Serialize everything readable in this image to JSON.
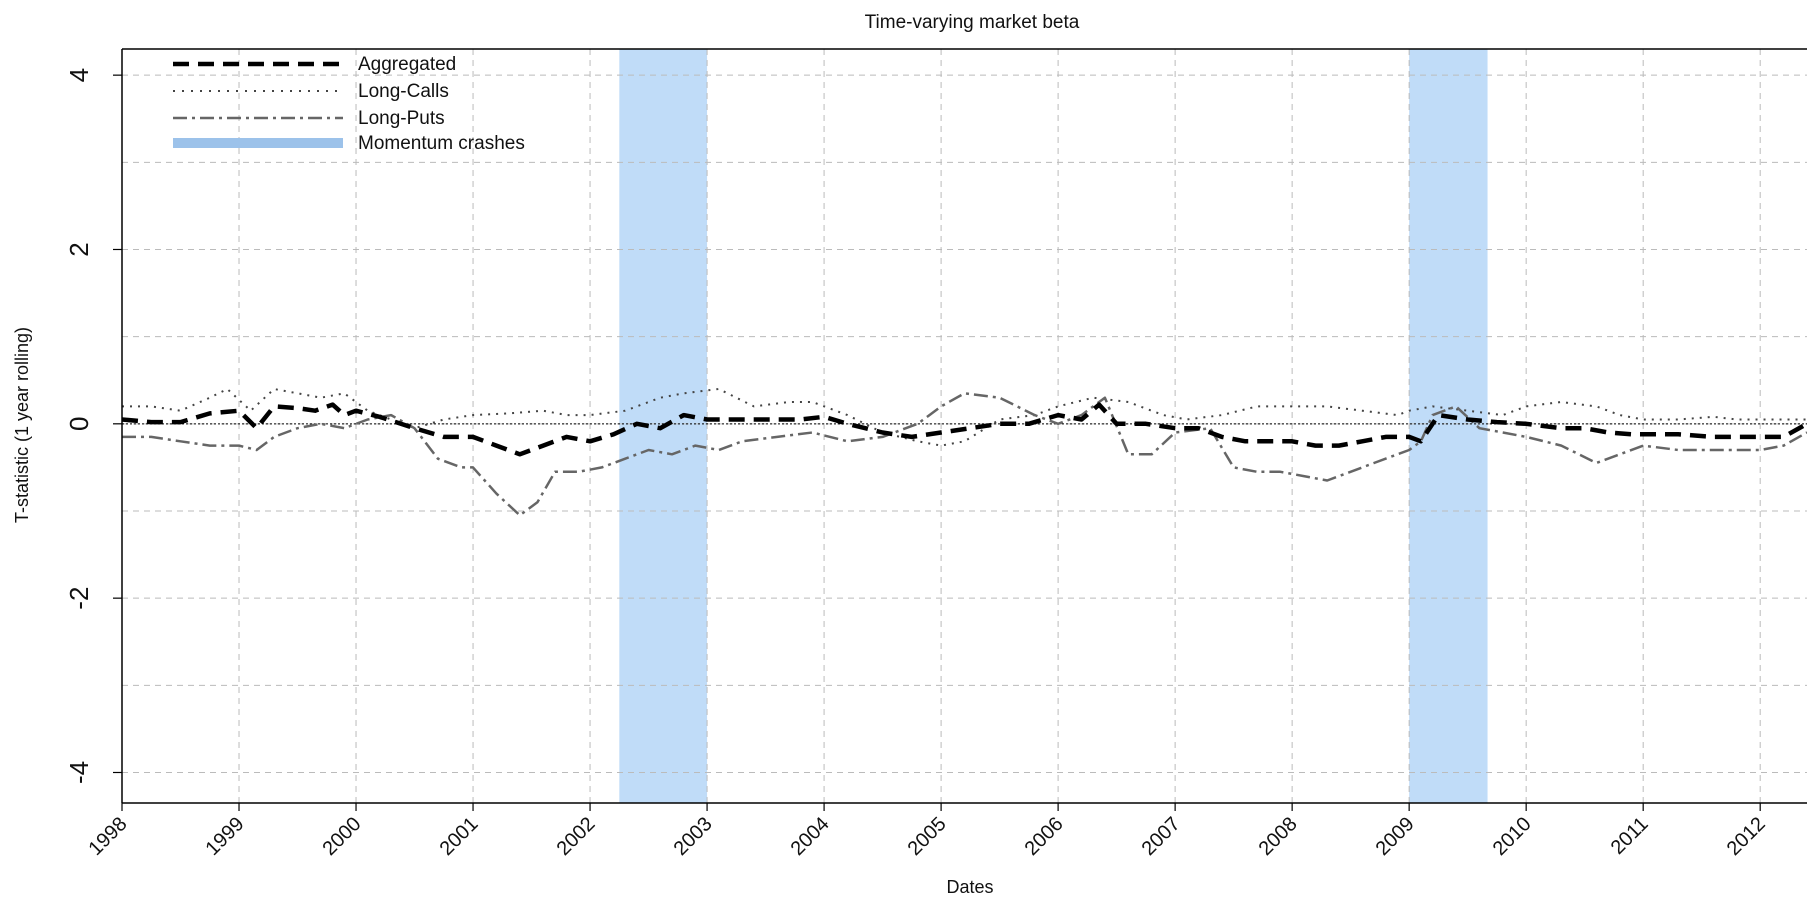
{
  "chart_data": {
    "type": "line",
    "title": "Time-varying market beta",
    "xlabel": "Dates",
    "ylabel": "T-statistic (1 year rolling)",
    "xlim": [
      1998.0,
      2012.4
    ],
    "ylim": [
      -4.35,
      4.3
    ],
    "x_ticks": [
      1998,
      1999,
      2000,
      2001,
      2002,
      2003,
      2004,
      2005,
      2006,
      2007,
      2008,
      2009,
      2010,
      2011,
      2012
    ],
    "x_tick_labels": [
      "1998",
      "1999",
      "2000",
      "2001",
      "2002",
      "2003",
      "2004",
      "2005",
      "2006",
      "2007",
      "2008",
      "2009",
      "2010",
      "2011",
      "2012"
    ],
    "y_ticks": [
      -4,
      -2,
      0,
      2,
      4
    ],
    "y_tick_labels": [
      "-4",
      "-2",
      "0",
      "2",
      "4"
    ],
    "y_grid": [
      -4,
      -3,
      -2,
      -1,
      0,
      1,
      2,
      3,
      4
    ],
    "grid": true,
    "legend_position": "top-left",
    "shaded_regions": [
      {
        "name": "Momentum crashes",
        "x0": 2002.25,
        "x1": 2003.0
      },
      {
        "name": "Momentum crashes",
        "x0": 2009.0,
        "x1": 2009.67
      }
    ],
    "legend": [
      {
        "label": "Aggregated",
        "style": "dashed-thick"
      },
      {
        "label": "Long-Calls",
        "style": "dotted"
      },
      {
        "label": "Long-Puts",
        "style": "dashdot"
      },
      {
        "label": "Momentum crashes",
        "style": "band"
      }
    ],
    "colors": {
      "aggregated": "#000000",
      "calls": "#444444",
      "puts": "#666666",
      "band": "#c0dcf8",
      "band_legend": "#9cc2ea",
      "grid": "#bbbbbb"
    },
    "series": [
      {
        "name": "Aggregated",
        "x": [
          1998.0,
          1998.25,
          1998.5,
          1998.75,
          1999.0,
          1999.15,
          1999.3,
          1999.5,
          1999.65,
          1999.8,
          1999.9,
          2000.0,
          2000.2,
          2000.5,
          2000.75,
          2001.0,
          2001.2,
          2001.4,
          2001.6,
          2001.8,
          2002.0,
          2002.2,
          2002.4,
          2002.6,
          2002.8,
          2003.0,
          2003.2,
          2003.4,
          2003.6,
          2003.8,
          2004.0,
          2004.2,
          2004.5,
          2004.75,
          2005.0,
          2005.25,
          2005.5,
          2005.75,
          2006.0,
          2006.2,
          2006.35,
          2006.5,
          2006.75,
          2007.0,
          2007.2,
          2007.4,
          2007.6,
          2007.8,
          2008.0,
          2008.2,
          2008.4,
          2008.6,
          2008.8,
          2009.0,
          2009.1,
          2009.25,
          2009.5,
          2009.75,
          2010.0,
          2010.3,
          2010.5,
          2010.7,
          2010.9,
          2011.0,
          2011.3,
          2011.6,
          2011.8,
          2012.0,
          2012.2,
          2012.4
        ],
        "values": [
          0.05,
          0.02,
          0.02,
          0.12,
          0.15,
          -0.05,
          0.2,
          0.18,
          0.15,
          0.22,
          0.1,
          0.15,
          0.08,
          -0.05,
          -0.15,
          -0.15,
          -0.25,
          -0.35,
          -0.25,
          -0.15,
          -0.2,
          -0.12,
          0.0,
          -0.05,
          0.1,
          0.05,
          0.05,
          0.05,
          0.05,
          0.05,
          0.08,
          0.0,
          -0.1,
          -0.15,
          -0.1,
          -0.05,
          0.0,
          0.0,
          0.1,
          0.05,
          0.22,
          0.0,
          0.0,
          -0.05,
          -0.05,
          -0.15,
          -0.2,
          -0.2,
          -0.2,
          -0.25,
          -0.25,
          -0.2,
          -0.15,
          -0.15,
          -0.2,
          0.1,
          0.05,
          0.02,
          0.0,
          -0.05,
          -0.05,
          -0.1,
          -0.12,
          -0.12,
          -0.12,
          -0.15,
          -0.15,
          -0.15,
          -0.15,
          0.0
        ]
      },
      {
        "name": "Long-Calls",
        "x": [
          1998.0,
          1998.25,
          1998.5,
          1998.75,
          1998.9,
          1999.1,
          1999.3,
          1999.5,
          1999.7,
          1999.9,
          2000.1,
          2000.3,
          2000.5,
          2000.75,
          2001.0,
          2001.3,
          2001.6,
          2001.8,
          2002.0,
          2002.3,
          2002.6,
          2002.8,
          2003.1,
          2003.4,
          2003.7,
          2003.9,
          2004.2,
          2004.5,
          2004.8,
          2005.0,
          2005.2,
          2005.5,
          2005.8,
          2006.0,
          2006.3,
          2006.6,
          2006.9,
          2007.1,
          2007.4,
          2007.7,
          2008.0,
          2008.3,
          2008.6,
          2008.9,
          2009.0,
          2009.2,
          2009.5,
          2009.8,
          2010.0,
          2010.3,
          2010.6,
          2010.8,
          2011.0,
          2011.3,
          2011.6,
          2011.8,
          2012.0,
          2012.2,
          2012.4
        ],
        "values": [
          0.2,
          0.2,
          0.15,
          0.3,
          0.4,
          0.15,
          0.4,
          0.35,
          0.3,
          0.35,
          0.15,
          0.05,
          -0.05,
          0.05,
          0.1,
          0.12,
          0.15,
          0.1,
          0.1,
          0.15,
          0.3,
          0.35,
          0.4,
          0.2,
          0.25,
          0.25,
          0.1,
          -0.1,
          -0.2,
          -0.25,
          -0.2,
          0.05,
          0.1,
          0.2,
          0.3,
          0.25,
          0.1,
          0.05,
          0.1,
          0.2,
          0.2,
          0.2,
          0.15,
          0.1,
          0.15,
          0.2,
          0.15,
          0.1,
          0.2,
          0.25,
          0.2,
          0.1,
          0.05,
          0.05,
          0.08,
          0.05,
          0.05,
          0.05,
          0.05
        ]
      },
      {
        "name": "Long-Puts",
        "x": [
          1998.0,
          1998.25,
          1998.5,
          1998.75,
          1999.0,
          1999.15,
          1999.3,
          1999.5,
          1999.7,
          1999.9,
          2000.1,
          2000.3,
          2000.5,
          2000.7,
          2000.9,
          2001.0,
          2001.2,
          2001.4,
          2001.55,
          2001.7,
          2001.9,
          2002.1,
          2002.3,
          2002.5,
          2002.7,
          2002.9,
          2003.1,
          2003.3,
          2003.6,
          2003.9,
          2004.2,
          2004.5,
          2004.8,
          2005.0,
          2005.2,
          2005.5,
          2005.8,
          2006.0,
          2006.2,
          2006.4,
          2006.6,
          2006.8,
          2007.0,
          2007.3,
          2007.5,
          2007.7,
          2007.9,
          2008.1,
          2008.3,
          2008.5,
          2008.7,
          2008.9,
          2009.0,
          2009.1,
          2009.2,
          2009.4,
          2009.6,
          2009.8,
          2010.0,
          2010.3,
          2010.6,
          2010.8,
          2011.0,
          2011.3,
          2011.6,
          2011.8,
          2012.0,
          2012.2,
          2012.4
        ],
        "values": [
          -0.15,
          -0.15,
          -0.2,
          -0.25,
          -0.25,
          -0.3,
          -0.15,
          -0.05,
          0.0,
          -0.05,
          0.05,
          0.1,
          -0.05,
          -0.4,
          -0.5,
          -0.5,
          -0.8,
          -1.05,
          -0.9,
          -0.55,
          -0.55,
          -0.5,
          -0.4,
          -0.3,
          -0.35,
          -0.25,
          -0.3,
          -0.2,
          -0.15,
          -0.1,
          -0.2,
          -0.15,
          0.0,
          0.2,
          0.35,
          0.3,
          0.1,
          0.0,
          0.1,
          0.3,
          -0.35,
          -0.35,
          -0.1,
          -0.05,
          -0.5,
          -0.55,
          -0.55,
          -0.6,
          -0.65,
          -0.55,
          -0.45,
          -0.35,
          -0.3,
          -0.2,
          0.1,
          0.2,
          -0.05,
          -0.1,
          -0.15,
          -0.25,
          -0.45,
          -0.35,
          -0.25,
          -0.3,
          -0.3,
          -0.3,
          -0.3,
          -0.25,
          -0.1
        ]
      }
    ]
  }
}
